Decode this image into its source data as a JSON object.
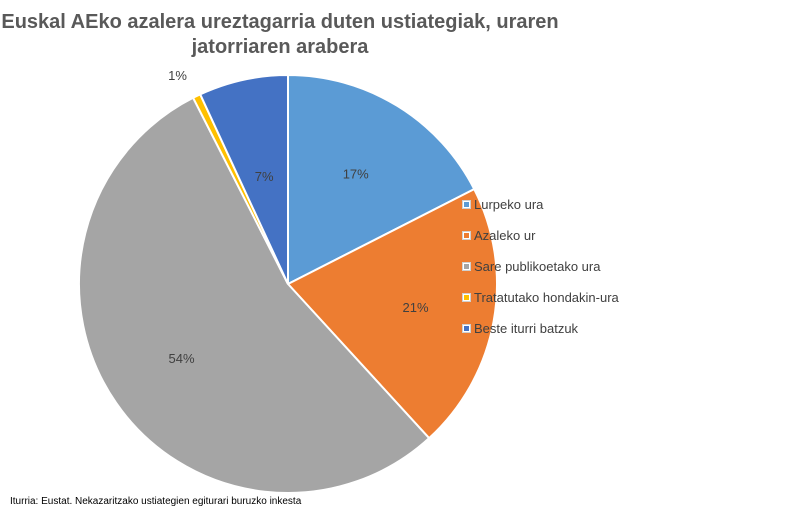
{
  "chart_data": {
    "type": "pie",
    "title": "Euskal AEko azalera ureztagarria duten ustiategiak, uraren jatorriaren arabera",
    "title_lines": [
      "Euskal AEko azalera ureztagarria duten ustiategiak, uraren",
      "jatorriaren arabera"
    ],
    "categories": [
      "Lurpeko ura",
      "Azaleko ur",
      "Sare publikoetako ura",
      "Tratatutako hondakin-ura",
      "Beste iturri batzuk"
    ],
    "values": [
      17.5,
      20.7,
      54.3,
      0.6,
      6.9
    ],
    "data_labels": [
      "17%",
      "21%",
      "54%",
      "1%",
      "7%"
    ],
    "colors": [
      "#5B9BD5",
      "#ED7D31",
      "#A5A5A5",
      "#FFC000",
      "#4472C4"
    ],
    "legend_position": "right",
    "start_angle_deg": 0,
    "direction": "clockwise"
  },
  "source_note": "Iturria: Eustat. Nekazaritzako ustiategien egiturari buruzko inkesta"
}
